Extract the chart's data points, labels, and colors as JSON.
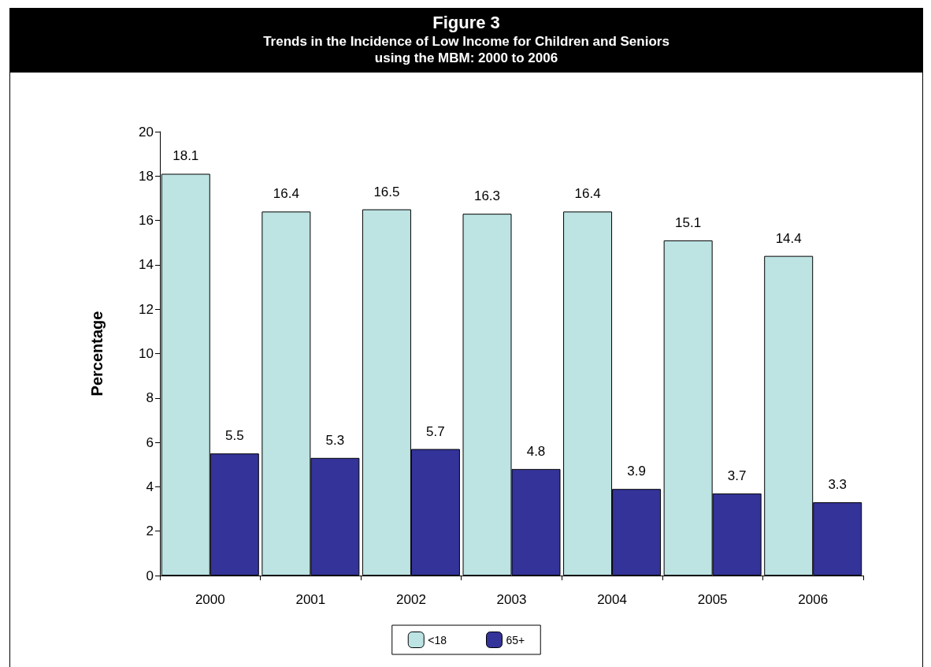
{
  "chart_data": {
    "type": "bar",
    "title": "Figure 3",
    "subtitle": "Trends in the Incidence of Low Income for Children and Seniors\nusing the MBM: 2000 to 2006",
    "ylabel": "Percentage",
    "categories": [
      "2000",
      "2001",
      "2002",
      "2003",
      "2004",
      "2005",
      "2006"
    ],
    "series": [
      {
        "name": "<18",
        "color": "#bde3e3",
        "values": [
          18.1,
          16.4,
          16.5,
          16.3,
          16.4,
          15.1,
          14.4
        ]
      },
      {
        "name": "65+",
        "color": "#333399",
        "values": [
          5.5,
          5.3,
          5.7,
          4.8,
          3.9,
          3.7,
          3.3
        ]
      }
    ],
    "ylim": [
      0,
      20
    ],
    "yticks": [
      0,
      2,
      4,
      6,
      8,
      10,
      12,
      14,
      16,
      18,
      20
    ],
    "grid": false,
    "legend": "bottom",
    "data_labels": true
  }
}
